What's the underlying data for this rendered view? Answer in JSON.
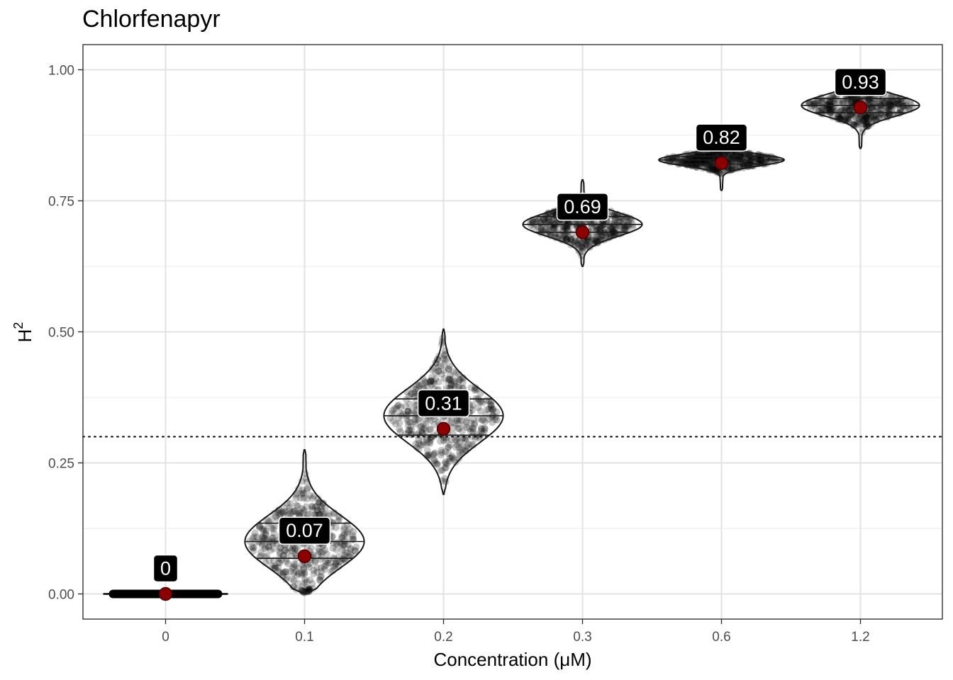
{
  "chart_data": {
    "type": "violin",
    "title": "Chlorfenapyr",
    "xlabel": "Concentration (μM)",
    "ylabel": "H",
    "ylabel_sup": "2",
    "categories": [
      "0",
      "0.1",
      "0.2",
      "0.3",
      "0.6",
      "1.2"
    ],
    "ylim": [
      -0.05,
      1.05
    ],
    "yticks": [
      0.0,
      0.25,
      0.5,
      0.75,
      1.0
    ],
    "ytick_labels": [
      "0.00",
      "0.25",
      "0.50",
      "0.75",
      "1.00"
    ],
    "grid": true,
    "reference_line": {
      "y": 0.3,
      "style": "dotted"
    },
    "point_color": "#8b0000",
    "violins": [
      {
        "category": "0",
        "mean": 0.0,
        "label": "0",
        "min": 0.0,
        "max": 0.005,
        "quantiles": [
          0.0,
          0.0,
          0.0
        ]
      },
      {
        "category": "0.1",
        "mean": 0.072,
        "label": "0.07",
        "min": 0.0,
        "max": 0.275,
        "quantiles": [
          0.068,
          0.1,
          0.135
        ]
      },
      {
        "category": "0.2",
        "mean": 0.315,
        "label": "0.31",
        "min": 0.19,
        "max": 0.505,
        "quantiles": [
          0.303,
          0.34,
          0.372
        ]
      },
      {
        "category": "0.3",
        "mean": 0.69,
        "label": "0.69",
        "min": 0.625,
        "max": 0.79,
        "quantiles": [
          0.69,
          0.705,
          0.72
        ]
      },
      {
        "category": "0.6",
        "mean": 0.822,
        "label": "0.82",
        "min": 0.77,
        "max": 0.85,
        "quantiles": [
          0.82,
          0.828,
          0.835
        ]
      },
      {
        "category": "1.2",
        "mean": 0.928,
        "label": "0.93",
        "min": 0.85,
        "max": 0.965,
        "quantiles": [
          0.918,
          0.932,
          0.945
        ]
      }
    ]
  }
}
